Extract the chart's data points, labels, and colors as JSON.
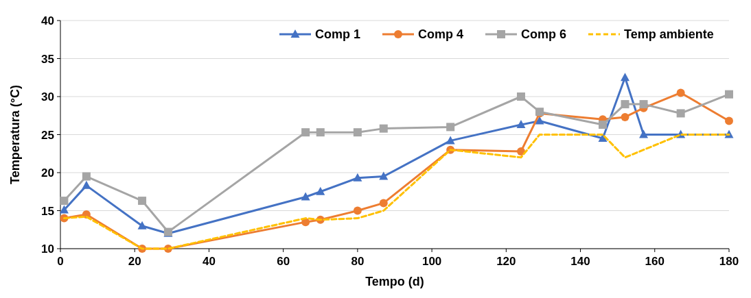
{
  "chart_data": {
    "type": "line",
    "xlabel": "Tempo (d)",
    "ylabel": "Temperatura (°C)",
    "xlim": [
      0,
      180
    ],
    "xticks": [
      0,
      20,
      40,
      60,
      80,
      100,
      120,
      140,
      160,
      180
    ],
    "ylim": [
      10,
      40
    ],
    "yticks": [
      10,
      15,
      20,
      25,
      30,
      35,
      40
    ],
    "grid": "y",
    "legend": "top right",
    "x": [
      1,
      7,
      22,
      29,
      66,
      70,
      80,
      87,
      105,
      124,
      129,
      146,
      152,
      157,
      167,
      180
    ],
    "series": [
      {
        "name": "Comp 1",
        "color": "#4472c4",
        "marker": "triangle",
        "line_style": "solid",
        "values": [
          15.1,
          18.3,
          13,
          12,
          16.8,
          17.5,
          19.3,
          19.5,
          24.2,
          26.3,
          26.8,
          24.5,
          32.5,
          25,
          25,
          25
        ]
      },
      {
        "name": "Comp 4",
        "color": "#ed7d31",
        "marker": "circle",
        "line_style": "solid",
        "values": [
          14,
          14.5,
          10,
          10,
          13.5,
          13.8,
          15,
          16,
          23,
          22.8,
          27.8,
          27,
          27.3,
          28.5,
          30.5,
          26.8
        ]
      },
      {
        "name": "Comp 6",
        "color": "#a5a5a5",
        "marker": "square",
        "line_style": "solid",
        "values": [
          16.3,
          19.5,
          16.3,
          12.2,
          25.3,
          25.3,
          25.3,
          25.8,
          26,
          30,
          28,
          26.3,
          29,
          29,
          27.8,
          30.3
        ]
      },
      {
        "name": "Temp ambiente",
        "color": "#ffc000",
        "marker": "none",
        "line_style": "dashed",
        "values": [
          14,
          14.2,
          10,
          10,
          14,
          13.8,
          14,
          15,
          23,
          22,
          25,
          25,
          22,
          23,
          25,
          25
        ]
      }
    ]
  }
}
